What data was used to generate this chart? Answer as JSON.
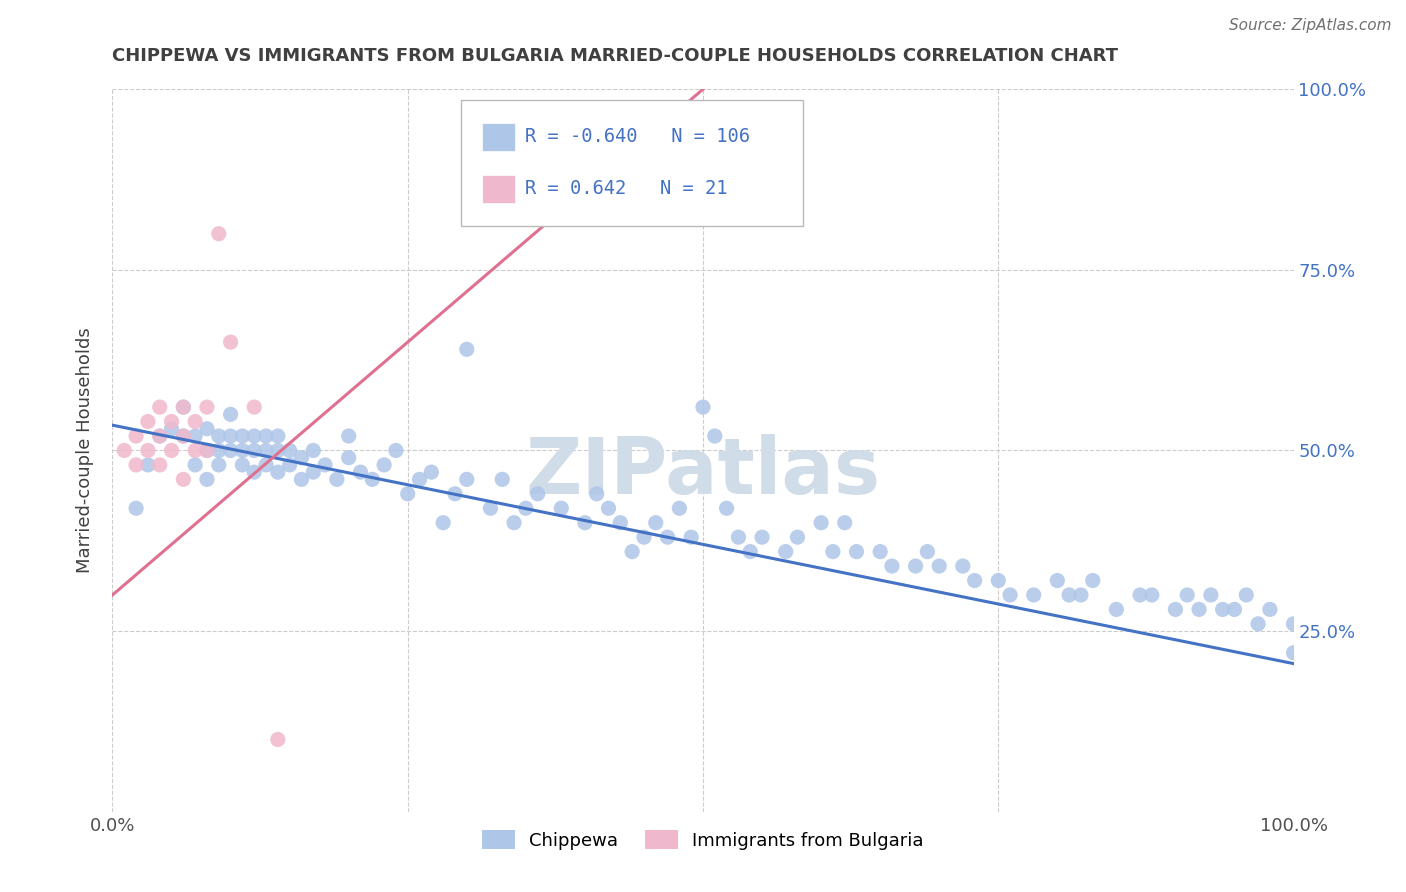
{
  "title": "CHIPPEWA VS IMMIGRANTS FROM BULGARIA MARRIED-COUPLE HOUSEHOLDS CORRELATION CHART",
  "source_text": "Source: ZipAtlas.com",
  "ylabel": "Married-couple Households",
  "xlim": [
    0.0,
    1.0
  ],
  "ylim": [
    0.0,
    1.0
  ],
  "legend_labels": [
    "Chippewa",
    "Immigrants from Bulgaria"
  ],
  "blue_line_color": "#4472c4",
  "pink_line_color": "#e07090",
  "blue_scatter_color": "#aec6e8",
  "pink_scatter_color": "#f0b8cc",
  "watermark": "ZIPatlas",
  "blue_scatter_x": [
    0.02,
    0.03,
    0.04,
    0.05,
    0.06,
    0.06,
    0.07,
    0.07,
    0.08,
    0.08,
    0.08,
    0.09,
    0.09,
    0.09,
    0.1,
    0.1,
    0.1,
    0.11,
    0.11,
    0.11,
    0.12,
    0.12,
    0.12,
    0.13,
    0.13,
    0.13,
    0.14,
    0.14,
    0.14,
    0.15,
    0.15,
    0.16,
    0.16,
    0.17,
    0.17,
    0.18,
    0.19,
    0.2,
    0.2,
    0.21,
    0.22,
    0.23,
    0.24,
    0.25,
    0.26,
    0.27,
    0.28,
    0.29,
    0.3,
    0.3,
    0.32,
    0.33,
    0.34,
    0.35,
    0.36,
    0.38,
    0.4,
    0.41,
    0.42,
    0.43,
    0.44,
    0.45,
    0.46,
    0.47,
    0.48,
    0.49,
    0.5,
    0.51,
    0.52,
    0.53,
    0.54,
    0.55,
    0.57,
    0.58,
    0.6,
    0.61,
    0.62,
    0.63,
    0.65,
    0.66,
    0.68,
    0.69,
    0.7,
    0.72,
    0.73,
    0.75,
    0.76,
    0.78,
    0.8,
    0.81,
    0.82,
    0.83,
    0.85,
    0.87,
    0.88,
    0.9,
    0.91,
    0.92,
    0.93,
    0.94,
    0.95,
    0.96,
    0.97,
    0.98,
    1.0,
    1.0
  ],
  "blue_scatter_y": [
    0.42,
    0.48,
    0.52,
    0.53,
    0.52,
    0.56,
    0.48,
    0.52,
    0.5,
    0.53,
    0.46,
    0.5,
    0.52,
    0.48,
    0.5,
    0.52,
    0.55,
    0.48,
    0.5,
    0.52,
    0.47,
    0.5,
    0.52,
    0.48,
    0.5,
    0.52,
    0.47,
    0.5,
    0.52,
    0.48,
    0.5,
    0.46,
    0.49,
    0.47,
    0.5,
    0.48,
    0.46,
    0.49,
    0.52,
    0.47,
    0.46,
    0.48,
    0.5,
    0.44,
    0.46,
    0.47,
    0.4,
    0.44,
    0.46,
    0.64,
    0.42,
    0.46,
    0.4,
    0.42,
    0.44,
    0.42,
    0.4,
    0.44,
    0.42,
    0.4,
    0.36,
    0.38,
    0.4,
    0.38,
    0.42,
    0.38,
    0.56,
    0.52,
    0.42,
    0.38,
    0.36,
    0.38,
    0.36,
    0.38,
    0.4,
    0.36,
    0.4,
    0.36,
    0.36,
    0.34,
    0.34,
    0.36,
    0.34,
    0.34,
    0.32,
    0.32,
    0.3,
    0.3,
    0.32,
    0.3,
    0.3,
    0.32,
    0.28,
    0.3,
    0.3,
    0.28,
    0.3,
    0.28,
    0.3,
    0.28,
    0.28,
    0.3,
    0.26,
    0.28,
    0.26,
    0.22
  ],
  "pink_scatter_x": [
    0.01,
    0.02,
    0.02,
    0.03,
    0.03,
    0.04,
    0.04,
    0.04,
    0.05,
    0.05,
    0.06,
    0.06,
    0.06,
    0.07,
    0.07,
    0.08,
    0.08,
    0.09,
    0.1,
    0.12,
    0.14
  ],
  "pink_scatter_y": [
    0.5,
    0.52,
    0.48,
    0.54,
    0.5,
    0.56,
    0.52,
    0.48,
    0.54,
    0.5,
    0.56,
    0.52,
    0.46,
    0.54,
    0.5,
    0.56,
    0.5,
    0.8,
    0.65,
    0.56,
    0.1
  ],
  "blue_line_x0": 0.0,
  "blue_line_x1": 1.0,
  "blue_line_y0": 0.535,
  "blue_line_y1": 0.205,
  "pink_line_x0": 0.0,
  "pink_line_x1": 0.5,
  "pink_line_y0": 0.3,
  "pink_line_y1": 1.0,
  "grid_color": "#cccccc",
  "title_color": "#404040",
  "r_value_color": "#4472c4",
  "watermark_color": "#d0dde8",
  "background_color": "#ffffff",
  "r1": "-0.640",
  "n1": "106",
  "r2": "0.642",
  "n2": "21"
}
